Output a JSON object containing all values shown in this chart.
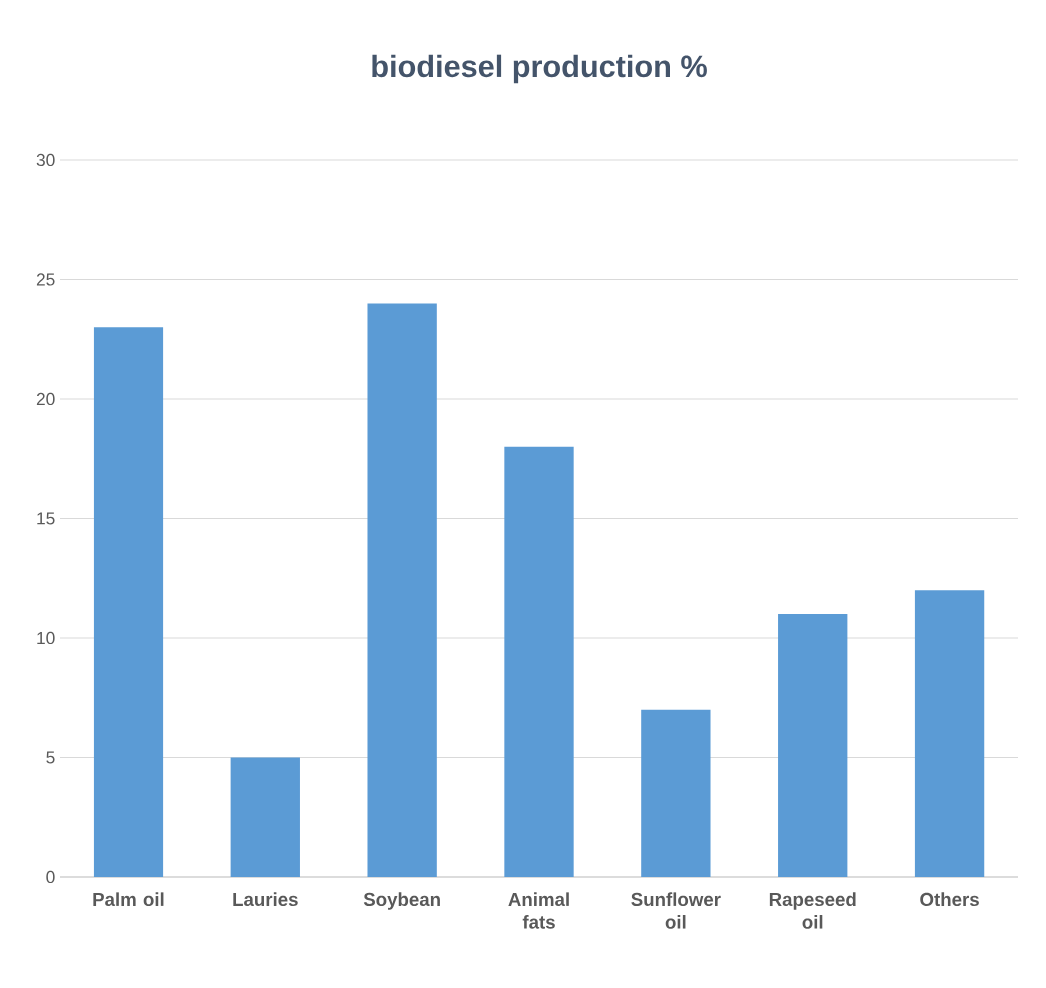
{
  "chart_data": {
    "type": "bar",
    "title": "biodiesel production %",
    "categories": [
      "Palm oil",
      "Lauries",
      "Soybean",
      "Animal fats",
      "Sunflower oil",
      "Rapeseed oil",
      "Others"
    ],
    "values": [
      23,
      5,
      24,
      18,
      7,
      11,
      12
    ],
    "color": "#5b9bd5",
    "ylim": [
      0,
      30
    ],
    "yticks": [
      0,
      5,
      10,
      15,
      20,
      25,
      30
    ],
    "grid": "y"
  }
}
